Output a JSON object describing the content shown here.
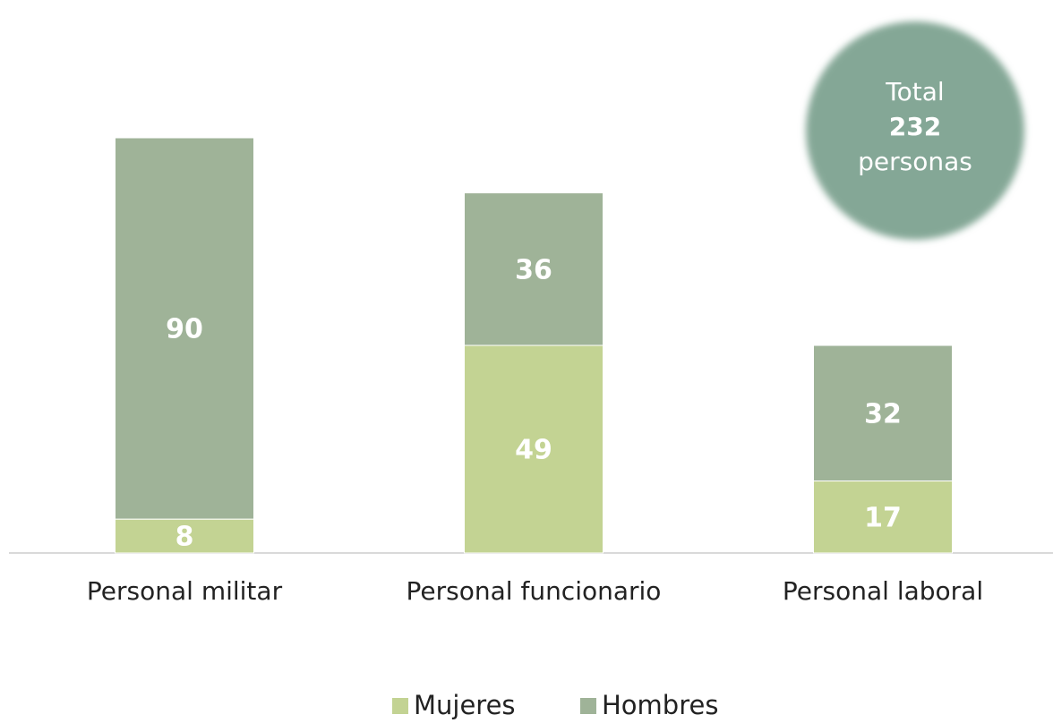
{
  "chart_data": {
    "type": "stacked_bar",
    "categories": [
      "Personal militar",
      "Personal funcionario",
      "Personal laboral"
    ],
    "series": [
      {
        "name": "Mujeres",
        "color": "#c3d393",
        "values": [
          8,
          49,
          17
        ]
      },
      {
        "name": "Hombres",
        "color": "#9fb398",
        "values": [
          90,
          36,
          32
        ]
      }
    ],
    "annotation": {
      "lines": [
        "Total",
        "232",
        "personas"
      ],
      "color": "#84a796"
    },
    "legend": "bottom"
  }
}
